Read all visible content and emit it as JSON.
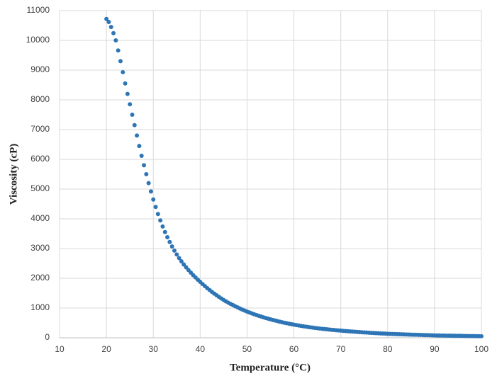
{
  "chart_data": {
    "type": "scatter",
    "x_label": "Temperature (°C)",
    "y_label": "Viscosity (cP)",
    "xlim": [
      10,
      100
    ],
    "ylim": [
      0,
      11000
    ],
    "xticks": [
      10,
      20,
      30,
      40,
      50,
      60,
      70,
      80,
      90,
      100
    ],
    "yticks": [
      0,
      1000,
      2000,
      3000,
      4000,
      5000,
      6000,
      7000,
      8000,
      9000,
      10000,
      11000
    ],
    "grid": true,
    "color": "#2e75b6",
    "x": [
      20,
      20.5,
      21,
      21.5,
      22,
      22.5,
      23,
      23.5,
      24,
      24.5,
      25,
      25.5,
      26,
      26.5,
      27,
      27.5,
      28,
      28.5,
      29,
      29.5,
      30,
      30.5,
      31,
      31.5,
      32,
      32.5,
      33,
      33.5,
      34,
      34.5,
      35,
      35.5,
      36,
      36.5,
      37,
      37.5,
      38,
      38.5,
      39,
      39.5,
      40,
      40.5,
      41,
      41.5,
      42,
      42.5,
      43,
      43.5,
      44,
      44.5,
      45,
      45.5,
      46,
      46.5,
      47,
      47.5,
      48,
      48.5,
      49,
      49.5,
      50,
      50.5,
      51,
      51.5,
      52,
      52.5,
      53,
      53.5,
      54,
      54.5,
      55,
      55.5,
      56,
      56.5,
      57,
      57.5,
      58,
      58.5,
      59,
      59.5,
      60,
      60.5,
      61,
      61.5,
      62,
      62.5,
      63,
      63.5,
      64,
      64.5,
      65,
      65.5,
      66,
      66.5,
      67,
      67.5,
      68,
      68.5,
      69,
      69.5,
      70,
      70.5,
      71,
      71.5,
      72,
      72.5,
      73,
      73.5,
      74,
      74.5,
      75,
      75.5,
      76,
      76.5,
      77,
      77.5,
      78,
      78.5,
      79,
      79.5,
      80,
      80.5,
      81,
      81.5,
      82,
      82.5,
      83,
      83.5,
      84,
      84.5,
      85,
      85.5,
      86,
      86.5,
      87,
      87.5,
      88,
      88.5,
      89,
      89.5,
      90,
      90.5,
      91,
      91.5,
      92,
      92.5,
      93,
      93.5,
      94,
      94.5,
      95,
      95.5,
      96,
      96.5,
      97,
      97.5,
      98,
      98.5,
      99,
      99.5,
      100
    ],
    "values": [
      10720,
      10620,
      10450,
      10240,
      10000,
      9660,
      9300,
      8930,
      8550,
      8200,
      7850,
      7500,
      7150,
      6800,
      6450,
      6120,
      5800,
      5500,
      5200,
      4920,
      4650,
      4400,
      4160,
      3945,
      3740,
      3555,
      3380,
      3220,
      3070,
      2930,
      2800,
      2680,
      2570,
      2465,
      2370,
      2277,
      2190,
      2108,
      2030,
      1953,
      1880,
      1808,
      1738,
      1671,
      1607,
      1545,
      1486,
      1429,
      1374,
      1321,
      1270,
      1224,
      1180,
      1138,
      1097,
      1058,
      1020,
      983,
      947,
      913,
      880,
      850,
      820,
      792,
      765,
      738,
      713,
      688,
      665,
      642,
      620,
      599,
      579,
      559,
      540,
      522,
      504,
      487,
      471,
      455,
      440,
      426,
      413,
      400,
      387,
      375,
      363,
      352,
      341,
      330,
      320,
      311,
      302,
      294,
      285,
      277,
      269,
      262,
      254,
      247,
      240,
      233,
      227,
      220,
      214,
      208,
      202,
      196,
      191,
      185,
      180,
      175,
      170,
      165,
      160,
      156,
      151,
      147,
      143,
      139,
      135,
      132,
      128,
      125,
      122,
      119,
      116,
      113,
      110,
      108,
      105,
      102,
      100,
      97,
      95,
      92,
      90,
      88,
      85,
      82,
      80,
      78,
      77,
      75,
      74,
      72,
      71,
      69,
      68,
      66,
      65,
      64,
      62,
      61,
      59,
      58,
      57,
      56,
      54,
      53,
      52
    ]
  }
}
